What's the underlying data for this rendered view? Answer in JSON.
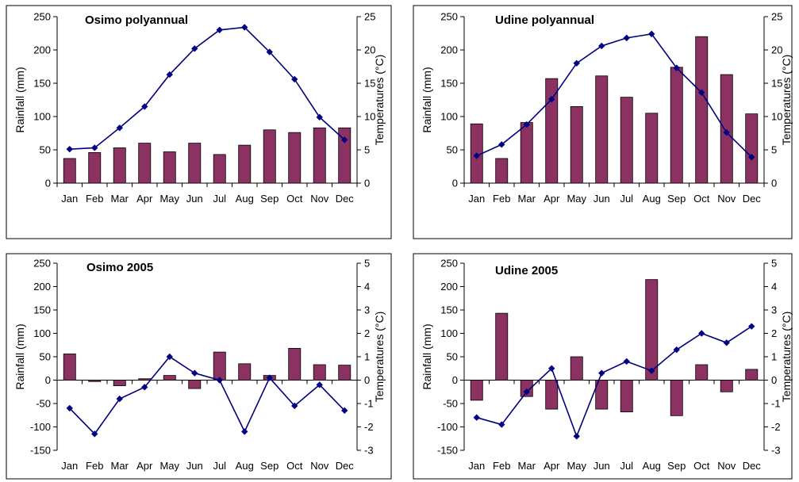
{
  "colors": {
    "bar": "#8b3263",
    "bar_stroke": "#000000",
    "line": "#00007f",
    "marker": "#000080"
  },
  "chart_data": [
    {
      "type": "bar",
      "title": "Osimo polyannual",
      "categories": [
        "Jan",
        "Feb",
        "Mar",
        "Apr",
        "May",
        "Jun",
        "Jul",
        "Aug",
        "Sep",
        "Oct",
        "Nov",
        "Dec"
      ],
      "ylabel": "Rainfall (mm)",
      "y2label": "Temperatures (°C)",
      "ylim": [
        0,
        250
      ],
      "yticks": [
        0,
        50,
        100,
        150,
        200,
        250
      ],
      "y2lim": [
        0,
        25
      ],
      "y2ticks": [
        0,
        5,
        10,
        15,
        20,
        25
      ],
      "series": [
        {
          "type": "bar",
          "axis": "left",
          "values": [
            37,
            46,
            53,
            60,
            47,
            60,
            43,
            57,
            80,
            76,
            83,
            83
          ]
        },
        {
          "type": "line",
          "axis": "right",
          "values": [
            5.1,
            5.3,
            8.3,
            11.5,
            16.3,
            20.2,
            23.0,
            23.4,
            19.7,
            15.6,
            9.9,
            6.5
          ]
        }
      ],
      "grid": false
    },
    {
      "type": "bar",
      "title": "Udine polyannual",
      "categories": [
        "Jan",
        "Feb",
        "Mar",
        "Apr",
        "May",
        "Jun",
        "Jul",
        "Aug",
        "Sep",
        "Oct",
        "Nov",
        "Dec"
      ],
      "ylabel": "Rainfall (mm)",
      "y2label": "Temperatures (°C)",
      "ylim": [
        0,
        250
      ],
      "yticks": [
        0,
        50,
        100,
        150,
        200,
        250
      ],
      "y2lim": [
        0,
        25
      ],
      "y2ticks": [
        0,
        5,
        10,
        15,
        20,
        25
      ],
      "series": [
        {
          "type": "bar",
          "axis": "left",
          "values": [
            89,
            37,
            91,
            157,
            115,
            161,
            129,
            105,
            174,
            220,
            163,
            104
          ]
        },
        {
          "type": "line",
          "axis": "right",
          "values": [
            4.1,
            5.8,
            8.8,
            12.6,
            18.0,
            20.6,
            21.8,
            22.4,
            17.3,
            13.6,
            7.6,
            3.9
          ]
        }
      ],
      "grid": false
    },
    {
      "type": "bar",
      "title": "Osimo  2005",
      "categories": [
        "Jan",
        "Feb",
        "Mar",
        "Apr",
        "May",
        "Jun",
        "Jul",
        "Aug",
        "Sep",
        "Oct",
        "Nov",
        "Dec"
      ],
      "ylabel": "Rainfall (mm)",
      "y2label": "Temperatures (°C)",
      "ylim": [
        -150,
        250
      ],
      "yticks": [
        -150,
        -100,
        -50,
        0,
        50,
        100,
        150,
        200,
        250
      ],
      "y2lim": [
        -3,
        5
      ],
      "y2ticks": [
        -3,
        -2,
        -1,
        0,
        1,
        2,
        3,
        4,
        5
      ],
      "series": [
        {
          "type": "bar",
          "axis": "left",
          "values": [
            56,
            -3,
            -12,
            3,
            10,
            -18,
            60,
            35,
            10,
            68,
            33,
            32
          ]
        },
        {
          "type": "line",
          "axis": "right",
          "values": [
            -1.2,
            -2.3,
            -0.8,
            -0.3,
            1.0,
            0.3,
            0.0,
            -2.2,
            0.1,
            -1.1,
            -0.2,
            -1.3
          ]
        }
      ],
      "grid": false
    },
    {
      "type": "bar",
      "title": "Udine  2005",
      "categories": [
        "Jan",
        "Feb",
        "Mar",
        "Apr",
        "May",
        "Jun",
        "Jul",
        "Aug",
        "Sep",
        "Oct",
        "Nov",
        "Dec"
      ],
      "ylabel": "Rainfall (mm)",
      "y2label": "Temperatures (°C)",
      "ylim": [
        -150,
        250
      ],
      "yticks": [
        -150,
        -100,
        -50,
        0,
        50,
        100,
        150,
        200,
        250
      ],
      "y2lim": [
        -3,
        5
      ],
      "y2ticks": [
        -3,
        -2,
        -1,
        0,
        1,
        2,
        3,
        4,
        5
      ],
      "series": [
        {
          "type": "bar",
          "axis": "left",
          "values": [
            -43,
            143,
            -35,
            -62,
            50,
            -62,
            -68,
            215,
            -76,
            33,
            -25,
            23
          ]
        },
        {
          "type": "line",
          "axis": "right",
          "values": [
            -1.6,
            -1.9,
            -0.5,
            0.5,
            -2.4,
            0.3,
            0.8,
            0.4,
            1.3,
            2.0,
            1.6,
            2.3
          ]
        }
      ],
      "grid": false
    }
  ]
}
